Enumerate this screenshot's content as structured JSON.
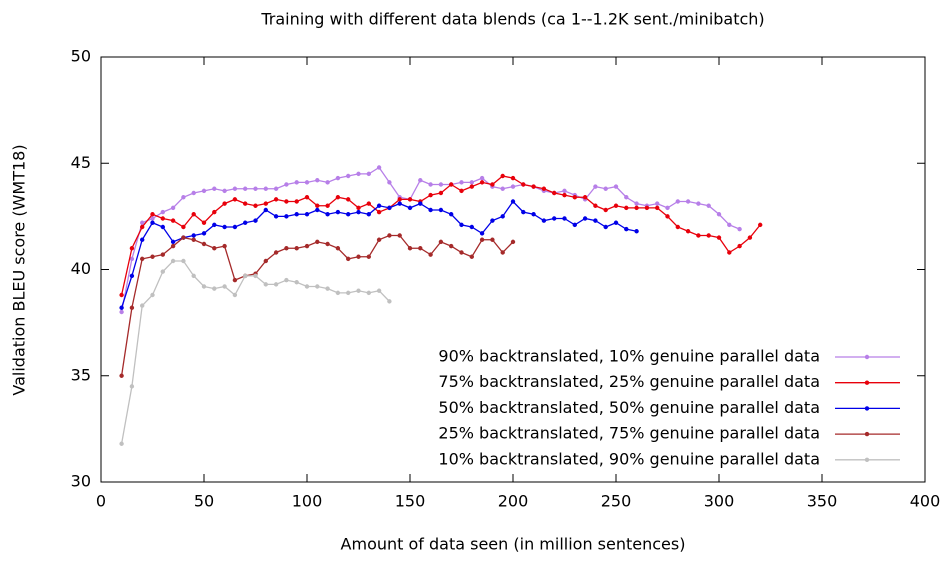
{
  "chart_data": {
    "type": "line",
    "title": "Training with different data blends (ca 1--1.2K sent./minibatch)",
    "xlabel": "Amount of data seen (in million sentences)",
    "ylabel": "Validation BLEU score (WMT18)",
    "xlim": [
      0,
      400
    ],
    "ylim": [
      30,
      50
    ],
    "xticks": [
      0,
      50,
      100,
      150,
      200,
      250,
      300,
      350,
      400
    ],
    "yticks": [
      30,
      35,
      40,
      45,
      50
    ],
    "legend": "lower right",
    "series": [
      {
        "name": "90% backtranslated, 10% genuine parallel data",
        "color": "#b77fe8",
        "x": [
          10,
          15,
          20,
          25,
          30,
          35,
          40,
          45,
          50,
          55,
          60,
          65,
          70,
          75,
          80,
          85,
          90,
          95,
          100,
          105,
          110,
          115,
          120,
          125,
          130,
          135,
          140,
          145,
          150,
          155,
          160,
          165,
          170,
          175,
          180,
          185,
          190,
          195,
          200,
          205,
          210,
          215,
          220,
          225,
          230,
          235,
          240,
          245,
          250,
          255,
          260,
          265,
          270,
          275,
          280,
          285,
          290,
          295,
          300,
          305,
          310
        ],
        "values": [
          38.0,
          40.5,
          42.2,
          42.4,
          42.7,
          42.9,
          43.4,
          43.6,
          43.7,
          43.8,
          43.7,
          43.8,
          43.8,
          43.8,
          43.8,
          43.8,
          44.0,
          44.1,
          44.1,
          44.2,
          44.1,
          44.3,
          44.4,
          44.5,
          44.5,
          44.8,
          44.1,
          43.4,
          43.3,
          44.2,
          44.0,
          44.0,
          44.0,
          44.1,
          44.1,
          44.3,
          43.9,
          43.8,
          43.9,
          44.0,
          43.9,
          43.7,
          43.6,
          43.7,
          43.5,
          43.3,
          43.9,
          43.8,
          43.9,
          43.4,
          43.1,
          43.0,
          43.1,
          42.9,
          43.2,
          43.2,
          43.1,
          43.0,
          42.6,
          42.1,
          41.9
        ]
      },
      {
        "name": "75% backtranslated, 25% genuine parallel data",
        "color": "#e8000b",
        "x": [
          10,
          15,
          20,
          25,
          30,
          35,
          40,
          45,
          50,
          55,
          60,
          65,
          70,
          75,
          80,
          85,
          90,
          95,
          100,
          105,
          110,
          115,
          120,
          125,
          130,
          135,
          140,
          145,
          150,
          155,
          160,
          165,
          170,
          175,
          180,
          185,
          190,
          195,
          200,
          205,
          210,
          215,
          220,
          225,
          230,
          235,
          240,
          245,
          250,
          255,
          260,
          265,
          270,
          275,
          280,
          285,
          290,
          295,
          300,
          305,
          310,
          315,
          320
        ],
        "values": [
          38.8,
          41.0,
          42.0,
          42.6,
          42.4,
          42.3,
          42.0,
          42.6,
          42.2,
          42.7,
          43.1,
          43.3,
          43.1,
          43.0,
          43.1,
          43.3,
          43.2,
          43.2,
          43.4,
          43.0,
          43.0,
          43.4,
          43.3,
          42.9,
          43.1,
          42.7,
          42.9,
          43.3,
          43.3,
          43.2,
          43.5,
          43.6,
          44.0,
          43.7,
          43.9,
          44.1,
          44.0,
          44.4,
          44.3,
          44.0,
          43.9,
          43.8,
          43.6,
          43.5,
          43.4,
          43.4,
          43.0,
          42.8,
          43.0,
          42.9,
          42.9,
          42.9,
          42.9,
          42.5,
          42.0,
          41.8,
          41.6,
          41.6,
          41.5,
          40.8,
          41.1,
          41.5,
          42.1
        ]
      },
      {
        "name": "50% backtranslated, 50% genuine parallel data",
        "color": "#0000e8",
        "x": [
          10,
          15,
          20,
          25,
          30,
          35,
          40,
          45,
          50,
          55,
          60,
          65,
          70,
          75,
          80,
          85,
          90,
          95,
          100,
          105,
          110,
          115,
          120,
          125,
          130,
          135,
          140,
          145,
          150,
          155,
          160,
          165,
          170,
          175,
          180,
          185,
          190,
          195,
          200,
          205,
          210,
          215,
          220,
          225,
          230,
          235,
          240,
          245,
          250,
          255,
          260
        ],
        "values": [
          38.2,
          39.7,
          41.4,
          42.2,
          42.0,
          41.3,
          41.5,
          41.6,
          41.7,
          42.1,
          42.0,
          42.0,
          42.2,
          42.3,
          42.8,
          42.5,
          42.5,
          42.6,
          42.6,
          42.8,
          42.6,
          42.7,
          42.6,
          42.7,
          42.6,
          43.0,
          42.9,
          43.1,
          42.9,
          43.1,
          42.8,
          42.8,
          42.6,
          42.1,
          42.0,
          41.7,
          42.3,
          42.5,
          43.2,
          42.7,
          42.6,
          42.3,
          42.4,
          42.4,
          42.1,
          42.4,
          42.3,
          42.0,
          42.2,
          41.9,
          41.8
        ]
      },
      {
        "name": "25% backtranslated, 75% genuine parallel data",
        "color": "#a52a2a",
        "x": [
          10,
          15,
          20,
          25,
          30,
          35,
          40,
          45,
          50,
          55,
          60,
          65,
          70,
          75,
          80,
          85,
          90,
          95,
          100,
          105,
          110,
          115,
          120,
          125,
          130,
          135,
          140,
          145,
          150,
          155,
          160,
          165,
          170,
          175,
          180,
          185,
          190,
          195,
          200
        ],
        "values": [
          35.0,
          38.2,
          40.5,
          40.6,
          40.7,
          41.1,
          41.5,
          41.4,
          41.2,
          41.0,
          41.1,
          39.5,
          39.7,
          39.8,
          40.4,
          40.8,
          41.0,
          41.0,
          41.1,
          41.3,
          41.2,
          41.0,
          40.5,
          40.6,
          40.6,
          41.4,
          41.6,
          41.6,
          41.0,
          41.0,
          40.7,
          41.3,
          41.1,
          40.8,
          40.6,
          41.4,
          41.4,
          40.8,
          41.3
        ]
      },
      {
        "name": "10% backtranslated, 90% genuine parallel data",
        "color": "#c0c0c0",
        "x": [
          10,
          15,
          20,
          25,
          30,
          35,
          40,
          45,
          50,
          55,
          60,
          65,
          70,
          75,
          80,
          85,
          90,
          95,
          100,
          105,
          110,
          115,
          120,
          125,
          130,
          135,
          140
        ],
        "values": [
          31.8,
          34.5,
          38.3,
          38.8,
          39.9,
          40.4,
          40.4,
          39.7,
          39.2,
          39.1,
          39.2,
          38.8,
          39.7,
          39.7,
          39.3,
          39.3,
          39.5,
          39.4,
          39.2,
          39.2,
          39.1,
          38.9,
          38.9,
          39.0,
          38.9,
          39.0,
          38.5
        ]
      }
    ]
  }
}
